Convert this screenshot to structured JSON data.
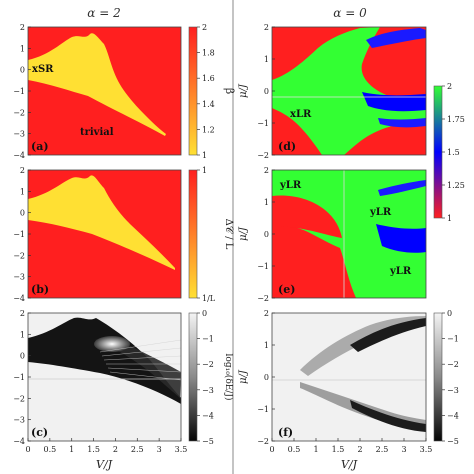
{
  "columns": {
    "left_title": "α = 2",
    "right_title": "α = 0"
  },
  "chart_data": [
    {
      "type": "heatmap",
      "panel": "(a)",
      "xlim": [
        0,
        3.5
      ],
      "ylim": [
        -4,
        2
      ],
      "yticks": [
        "2",
        "1",
        "0",
        "−1",
        "−2",
        "−3",
        "−4"
      ],
      "colorbar": {
        "label": "β",
        "ticks": [
          "2",
          "1.8",
          "1.6",
          "1.4",
          "1.2",
          "1"
        ],
        "colors": [
          "#ff1f1f",
          "#ffe033"
        ]
      },
      "annotations": [
        "xSR",
        "trivial"
      ]
    },
    {
      "type": "heatmap",
      "panel": "(b)",
      "xlim": [
        0,
        3.5
      ],
      "ylim": [
        -4,
        2
      ],
      "yticks": [
        "2",
        "1",
        "0",
        "−1",
        "−2",
        "−3",
        "−4"
      ],
      "colorbar": {
        "label": "Δ𝒞 / L",
        "ticks": [
          "1",
          "1/L"
        ],
        "colors": [
          "#ff1f1f",
          "#ffe033"
        ]
      },
      "annotations": []
    },
    {
      "type": "heatmap",
      "panel": "(c)",
      "xlim": [
        0,
        3.5
      ],
      "ylim": [
        -4,
        2
      ],
      "yticks": [
        "2",
        "1",
        "0",
        "−1",
        "−2",
        "−3",
        "−4"
      ],
      "xticks": [
        "0",
        "0.5",
        "1",
        "1.5",
        "2",
        "2.5",
        "3",
        "3.5"
      ],
      "xlabel": "V/J",
      "colorbar": {
        "label": "log₁₀(δE/J)",
        "ticks": [
          "0",
          "−1",
          "−2",
          "−3",
          "−4",
          "−5"
        ],
        "colors": [
          "#f2f2f2",
          "#0a0a0a"
        ]
      },
      "annotations": []
    },
    {
      "type": "heatmap",
      "panel": "(d)",
      "xlim": [
        0,
        3.5
      ],
      "ylim": [
        -2,
        2
      ],
      "yticks": [
        "2",
        "1",
        "0",
        "−1",
        "−2"
      ],
      "ylabel": "μ/J",
      "colorbar": {
        "label": "",
        "ticks": [
          "2",
          "1.75",
          "1.5",
          "1.25",
          "1"
        ],
        "colors": [
          "#ff1f1f",
          "#0000ff",
          "#33ff33"
        ]
      },
      "annotations": [
        "xLR"
      ]
    },
    {
      "type": "heatmap",
      "panel": "(e)",
      "xlim": [
        0,
        3.5
      ],
      "ylim": [
        -2,
        2
      ],
      "yticks": [
        "2",
        "1",
        "0",
        "−1",
        "−2"
      ],
      "ylabel": "μ/J",
      "annotations": [
        "yLR",
        "yLR",
        "yLR"
      ]
    },
    {
      "type": "heatmap",
      "panel": "(f)",
      "xlim": [
        0,
        3.5
      ],
      "ylim": [
        -2,
        2
      ],
      "yticks": [
        "2",
        "1",
        "0",
        "−1",
        "−2"
      ],
      "xticks": [
        "0",
        "0.5",
        "1",
        "1.5",
        "2",
        "2.5",
        "3",
        "3.5"
      ],
      "xlabel": "V/J",
      "ylabel": "μ/J",
      "colorbar": {
        "label": "",
        "ticks": [
          "0",
          "−1",
          "−2",
          "−3",
          "−4",
          "−5"
        ],
        "colors": [
          "#f2f2f2",
          "#0a0a0a"
        ]
      },
      "annotations": []
    }
  ]
}
